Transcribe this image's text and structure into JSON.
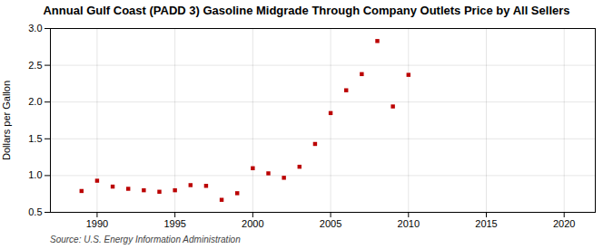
{
  "chart_data": {
    "type": "scatter",
    "title": "Annual Gulf Coast (PADD 3) Gasoline Midgrade Through Company Outlets Price by All Sellers",
    "ylabel": "Dollars per Gallon",
    "source": "Source: U.S. Energy Information Administration",
    "x": [
      1989,
      1990,
      1991,
      1992,
      1993,
      1994,
      1995,
      1996,
      1997,
      1998,
      1999,
      2000,
      2001,
      2002,
      2003,
      2004,
      2005,
      2006,
      2007,
      2008,
      2009,
      2010
    ],
    "values": [
      0.79,
      0.93,
      0.85,
      0.82,
      0.8,
      0.78,
      0.8,
      0.87,
      0.86,
      0.67,
      0.76,
      1.1,
      1.03,
      0.97,
      1.12,
      1.43,
      1.85,
      2.16,
      2.38,
      2.83,
      1.94,
      2.37
    ],
    "color": "#bb0000",
    "marker": "square",
    "xlim": [
      1987,
      2022
    ],
    "ylim": [
      0.5,
      3.0
    ],
    "xticks": [
      1990,
      1995,
      2000,
      2005,
      2010,
      2015,
      2020
    ],
    "yticks": [
      {
        "value": 0.5,
        "label": "0.5"
      },
      {
        "value": 1.0,
        "label": "1.0"
      },
      {
        "value": 1.5,
        "label": "1.5"
      },
      {
        "value": 2.0,
        "label": "2.0"
      },
      {
        "value": 2.5,
        "label": "2.5"
      },
      {
        "value": 3.0,
        "label": "3.0"
      }
    ],
    "grid": true
  }
}
